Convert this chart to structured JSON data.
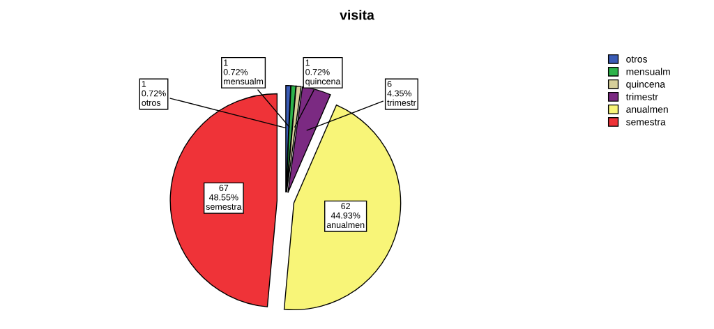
{
  "chart_data": {
    "type": "pie",
    "title": "visita",
    "categories": [
      "otros",
      "mensualm",
      "quincena",
      "trimestr",
      "anualmen",
      "semestra"
    ],
    "values": [
      1,
      1,
      1,
      6,
      62,
      67
    ],
    "colors": [
      "#3a5bb5",
      "#2db34a",
      "#d6cf9a",
      "#7b2a82",
      "#f8f578",
      "#ef3338"
    ],
    "value_labels": [
      "1\n0.72%",
      "1\n0.72%",
      "1\n0.72%",
      "6\n4.35%",
      "62\n44.93%",
      "67\n48.55%"
    ],
    "legend": "top right"
  }
}
